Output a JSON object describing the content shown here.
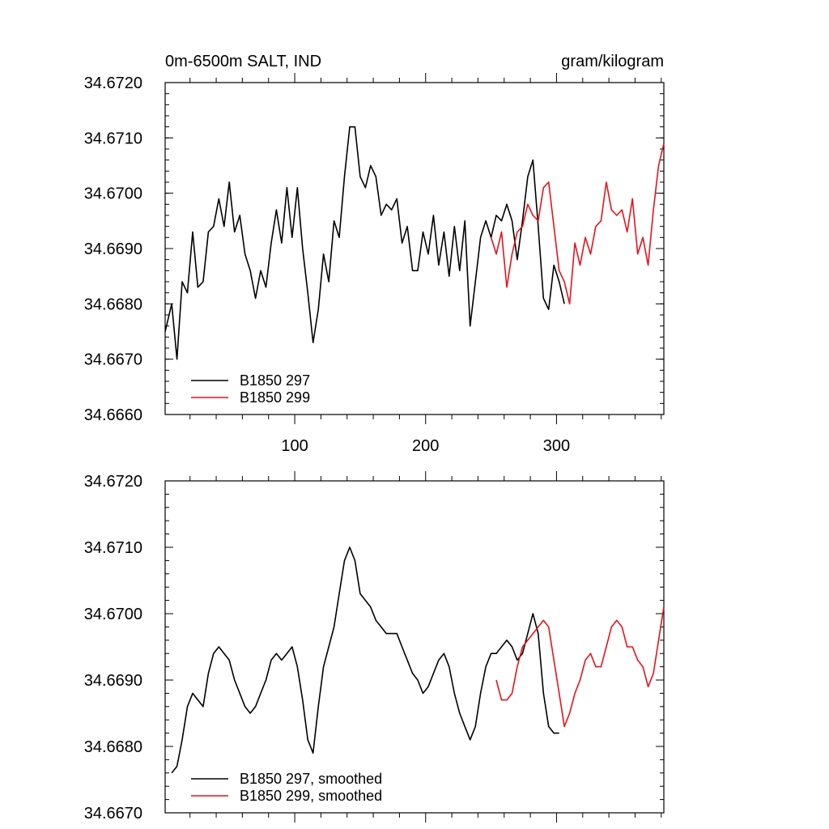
{
  "header": {
    "left_title": "0m-6500m SALT, IND",
    "right_title": "gram/kilogram"
  },
  "colors": {
    "series_297": "#000000",
    "series_299": "#e8121b"
  },
  "chart_data": [
    {
      "type": "line",
      "title": "0m-6500m SALT, IND",
      "units": "gram/kilogram",
      "xlim": [
        1,
        382
      ],
      "ylim": [
        34.666,
        34.672
      ],
      "x_ticks": [
        100,
        200,
        300
      ],
      "x_tick_labels": [
        "100",
        "200",
        "300"
      ],
      "y_ticks": [
        34.666,
        34.667,
        34.668,
        34.669,
        34.67,
        34.671,
        34.672
      ],
      "y_tick_labels": [
        "34.6660",
        "34.6670",
        "34.6680",
        "34.6690",
        "34.6700",
        "34.6710",
        "34.6720"
      ],
      "legend": [
        "B1850 297",
        "B1850 299"
      ],
      "legend_position": "bottom-left",
      "series": [
        {
          "name": "B1850 297",
          "x": [
            1,
            6,
            10,
            14,
            18,
            22,
            26,
            30,
            34,
            38,
            42,
            46,
            50,
            54,
            58,
            62,
            66,
            70,
            74,
            78,
            82,
            86,
            90,
            94,
            98,
            102,
            106,
            110,
            114,
            118,
            122,
            126,
            130,
            134,
            138,
            142,
            146,
            150,
            154,
            158,
            162,
            166,
            170,
            174,
            178,
            182,
            186,
            190,
            194,
            198,
            202,
            206,
            210,
            214,
            218,
            222,
            226,
            230,
            234,
            238,
            242,
            246,
            250,
            254,
            258,
            262,
            266,
            270,
            274,
            278,
            282,
            286,
            290,
            294,
            298,
            302,
            306
          ],
          "values": [
            34.6675,
            34.668,
            34.667,
            34.6684,
            34.6682,
            34.6693,
            34.6683,
            34.6684,
            34.6693,
            34.6694,
            34.6699,
            34.6694,
            34.6702,
            34.6693,
            34.6696,
            34.6689,
            34.6686,
            34.6681,
            34.6686,
            34.6683,
            34.6691,
            34.6697,
            34.6691,
            34.6701,
            34.6692,
            34.6701,
            34.669,
            34.6682,
            34.6673,
            34.6679,
            34.6689,
            34.6684,
            34.6695,
            34.6692,
            34.6703,
            34.6712,
            34.6712,
            34.6703,
            34.6701,
            34.6705,
            34.6703,
            34.6696,
            34.6698,
            34.6697,
            34.6699,
            34.6691,
            34.6694,
            34.6686,
            34.6686,
            34.6693,
            34.6689,
            34.6696,
            34.6687,
            34.6693,
            34.6685,
            34.6694,
            34.6686,
            34.6695,
            34.6676,
            34.6684,
            34.6692,
            34.6695,
            34.6692,
            34.6696,
            34.6695,
            34.6698,
            34.6695,
            34.6688,
            34.6695,
            34.6703,
            34.6706,
            34.6694,
            34.6681,
            34.6679,
            34.6687,
            34.6684,
            34.668
          ]
        },
        {
          "name": "B1850 299",
          "x": [
            250,
            254,
            258,
            262,
            266,
            270,
            274,
            278,
            282,
            286,
            290,
            294,
            298,
            302,
            306,
            310,
            314,
            318,
            322,
            326,
            330,
            334,
            338,
            342,
            346,
            350,
            354,
            358,
            362,
            366,
            370,
            374,
            378,
            382
          ],
          "values": [
            34.6692,
            34.6689,
            34.6693,
            34.6683,
            34.6689,
            34.6693,
            34.6694,
            34.6698,
            34.6696,
            34.6695,
            34.6701,
            34.6702,
            34.6694,
            34.6686,
            34.6684,
            34.668,
            34.6691,
            34.6687,
            34.6692,
            34.6689,
            34.6694,
            34.6695,
            34.6702,
            34.6697,
            34.6696,
            34.6697,
            34.6693,
            34.6699,
            34.6689,
            34.6692,
            34.6687,
            34.6697,
            34.6705,
            34.6709
          ]
        }
      ]
    },
    {
      "type": "line",
      "title": "",
      "xlim": [
        1,
        382
      ],
      "ylim": [
        34.667,
        34.672
      ],
      "x_ticks": [
        100,
        200,
        300
      ],
      "y_ticks": [
        34.667,
        34.668,
        34.669,
        34.67,
        34.671,
        34.672
      ],
      "y_tick_labels": [
        "34.6670",
        "34.6680",
        "34.6690",
        "34.6700",
        "34.6710",
        "34.6720"
      ],
      "legend": [
        "B1850 297, smoothed",
        "B1850 299, smoothed"
      ],
      "legend_position": "bottom-left",
      "series": [
        {
          "name": "B1850 297, smoothed",
          "x": [
            6,
            10,
            14,
            18,
            22,
            26,
            30,
            34,
            38,
            42,
            46,
            50,
            54,
            58,
            62,
            66,
            70,
            74,
            78,
            82,
            86,
            90,
            94,
            98,
            102,
            106,
            110,
            114,
            118,
            122,
            126,
            130,
            134,
            138,
            142,
            146,
            150,
            154,
            158,
            162,
            166,
            170,
            174,
            178,
            182,
            186,
            190,
            194,
            198,
            202,
            206,
            210,
            214,
            218,
            222,
            226,
            230,
            234,
            238,
            242,
            246,
            250,
            254,
            258,
            262,
            266,
            270,
            274,
            278,
            282,
            286,
            290,
            294,
            298,
            302
          ],
          "values": [
            34.6676,
            34.6677,
            34.6681,
            34.6686,
            34.6688,
            34.6687,
            34.6686,
            34.6691,
            34.6694,
            34.6695,
            34.6694,
            34.6693,
            34.669,
            34.6688,
            34.6686,
            34.6685,
            34.6686,
            34.6688,
            34.669,
            34.6693,
            34.6694,
            34.6693,
            34.6694,
            34.6695,
            34.6692,
            34.6687,
            34.6681,
            34.6679,
            34.6686,
            34.6692,
            34.6695,
            34.6698,
            34.6703,
            34.6708,
            34.671,
            34.6708,
            34.6703,
            34.6702,
            34.6701,
            34.6699,
            34.6698,
            34.6697,
            34.6697,
            34.6697,
            34.6695,
            34.6693,
            34.6691,
            34.669,
            34.6688,
            34.6689,
            34.6691,
            34.6693,
            34.6694,
            34.6692,
            34.6688,
            34.6685,
            34.6683,
            34.6681,
            34.6683,
            34.6688,
            34.6692,
            34.6694,
            34.6694,
            34.6695,
            34.6696,
            34.6695,
            34.6693,
            34.6694,
            34.6697,
            34.67,
            34.6697,
            34.6688,
            34.6683,
            34.6682,
            34.6682
          ]
        },
        {
          "name": "B1850 299, smoothed",
          "x": [
            254,
            258,
            262,
            266,
            270,
            274,
            278,
            282,
            286,
            290,
            294,
            298,
            302,
            306,
            310,
            314,
            318,
            322,
            326,
            330,
            334,
            338,
            342,
            346,
            350,
            354,
            358,
            362,
            366,
            370,
            374,
            378,
            382
          ],
          "values": [
            34.669,
            34.6687,
            34.6687,
            34.6688,
            34.6692,
            34.6695,
            34.6696,
            34.6697,
            34.6698,
            34.6699,
            34.6698,
            34.6693,
            34.6688,
            34.6683,
            34.6685,
            34.6688,
            34.669,
            34.6693,
            34.6694,
            34.6692,
            34.6692,
            34.6695,
            34.6698,
            34.6699,
            34.6698,
            34.6695,
            34.6695,
            34.6693,
            34.6692,
            34.6689,
            34.6691,
            34.6696,
            34.6701
          ]
        }
      ]
    }
  ]
}
